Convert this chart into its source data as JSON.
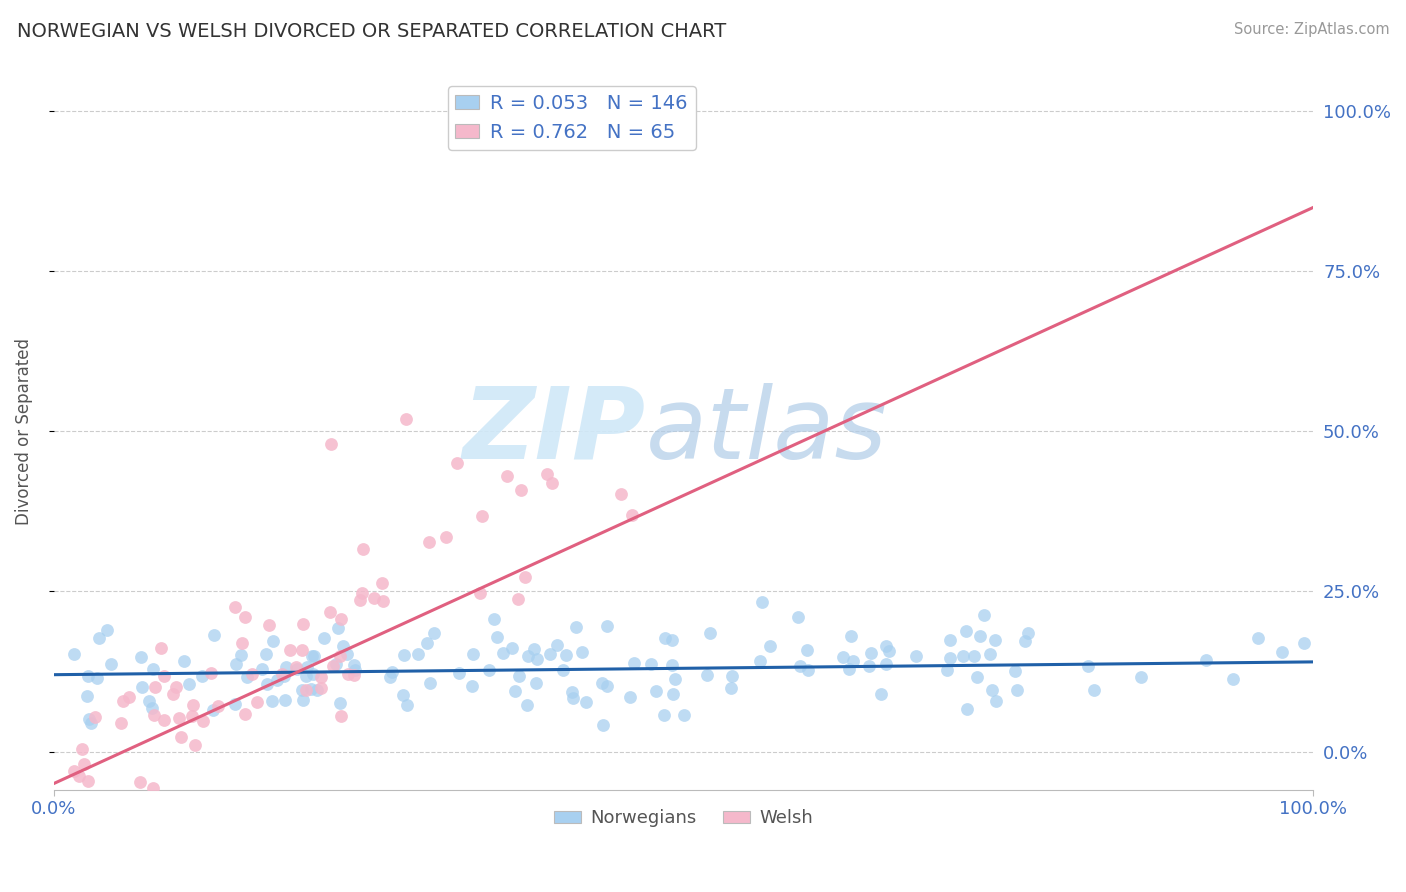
{
  "title": "NORWEGIAN VS WELSH DIVORCED OR SEPARATED CORRELATION CHART",
  "source": "Source: ZipAtlas.com",
  "ylabel": "Divorced or Separated",
  "xlabel": "",
  "xlim": [
    0,
    1.0
  ],
  "ylim": [
    -0.06,
    1.06
  ],
  "ytick_positions": [
    0.0,
    0.25,
    0.5,
    0.75,
    1.0
  ],
  "ytick_labels_right": [
    "0.0%",
    "25.0%",
    "50.0%",
    "75.0%",
    "100.0%"
  ],
  "xtick_positions": [
    0.0,
    1.0
  ],
  "xtick_labels": [
    "0.0%",
    "100.0%"
  ],
  "norwegian_color": "#a8d0f0",
  "welsh_color": "#f5b8cb",
  "norwegian_line_color": "#2060a8",
  "welsh_line_color": "#e06080",
  "legend_r_nor": "0.053",
  "legend_n_nor": "146",
  "legend_r_wel": "0.762",
  "legend_n_wel": "65",
  "title_color": "#333333",
  "axis_label_color": "#555555",
  "tick_label_color": "#4472c4",
  "grid_color": "#cccccc",
  "background_color": "#ffffff",
  "watermark_zip_color": "#d0e8f8",
  "watermark_atlas_color": "#b0cce8",
  "figsize": [
    14.06,
    8.92
  ],
  "dpi": 100
}
